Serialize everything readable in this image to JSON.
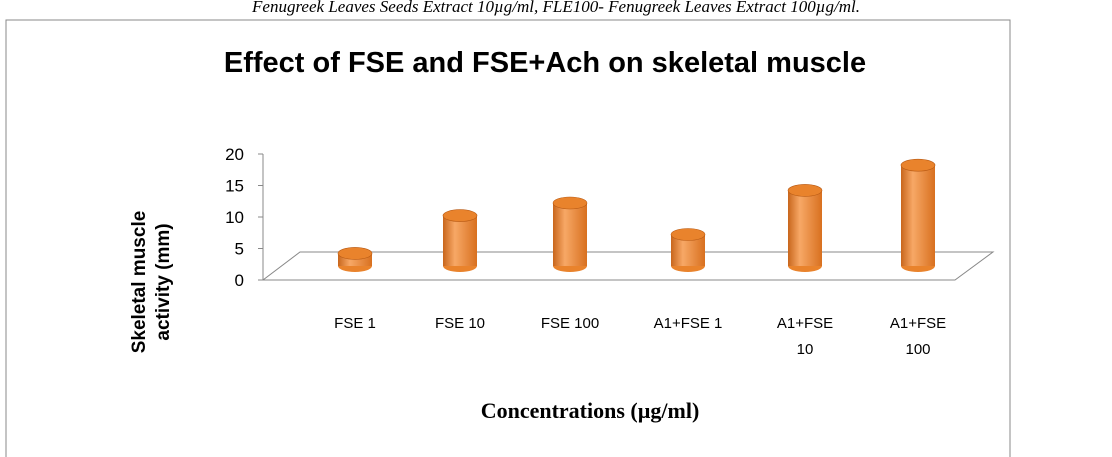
{
  "caption": "Fenugreek Leaves Seeds Extract 10µg/ml, FLE100- Fenugreek Leaves Extract 100µg/ml.",
  "chart_data": {
    "type": "bar",
    "title": "Effect of FSE and FSE+Ach on skeletal muscle",
    "x_label": "Concentrations (µg/ml)",
    "y_label": "Skeletal muscle activity (mm)",
    "categories": [
      "FSE 1",
      "FSE  10",
      "FSE 100",
      "A1+FSE 1",
      "A1+FSE 10",
      "A1+FSE 100"
    ],
    "values": [
      2,
      8,
      10,
      5,
      12,
      16
    ],
    "color": "#e9832c",
    "ylim": [
      0,
      20
    ],
    "yticks": [
      0,
      5,
      10,
      15,
      20
    ],
    "grid": false
  }
}
